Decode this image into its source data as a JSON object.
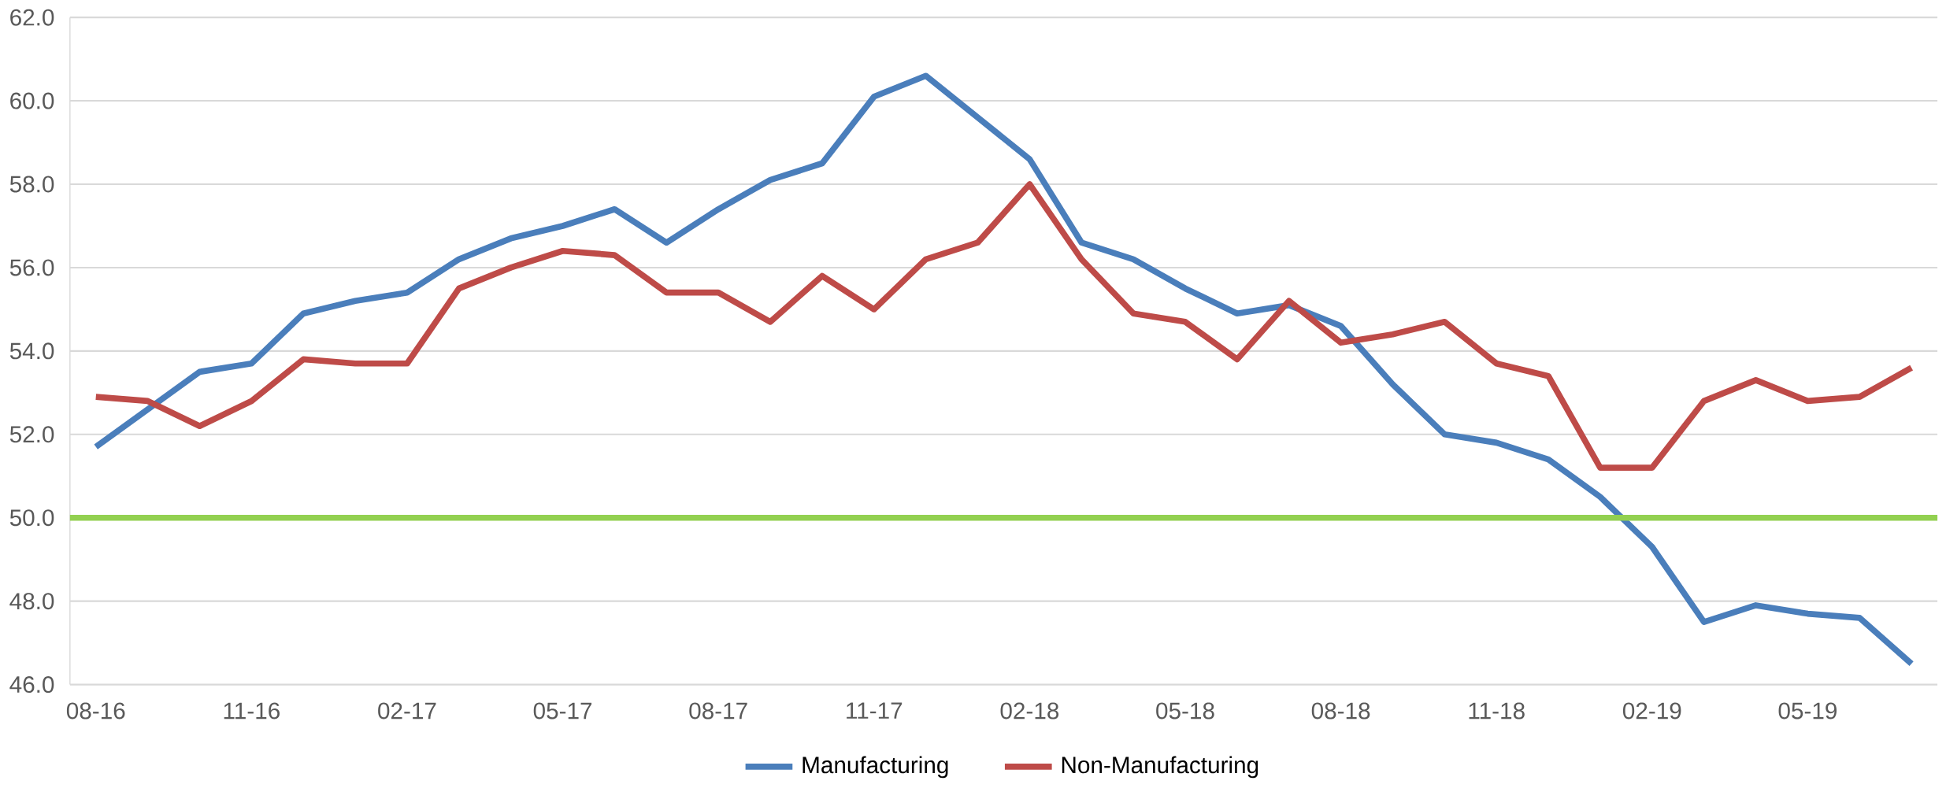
{
  "chart_data": {
    "type": "line",
    "categories": [
      "08-16",
      null,
      null,
      "11-16",
      null,
      null,
      "02-17",
      null,
      null,
      "05-17",
      null,
      null,
      "08-17",
      null,
      null,
      "11-17",
      null,
      null,
      "02-18",
      null,
      null,
      "05-18",
      null,
      null,
      "08-18",
      null,
      null,
      "11-18",
      null,
      null,
      "02-19",
      null,
      null,
      "05-19",
      null,
      null
    ],
    "series": [
      {
        "name": "Manufacturing",
        "color": "#4a7ebb",
        "values": [
          51.7,
          52.6,
          53.5,
          53.7,
          54.9,
          55.2,
          55.4,
          56.2,
          56.7,
          57.0,
          57.4,
          56.6,
          57.4,
          58.1,
          58.5,
          60.1,
          60.6,
          59.6,
          58.6,
          56.6,
          56.2,
          55.5,
          54.9,
          55.1,
          54.6,
          53.2,
          52.0,
          51.8,
          51.4,
          50.5,
          49.3,
          47.5,
          47.9,
          47.7,
          47.6,
          46.5
        ]
      },
      {
        "name": "Non-Manufacturing",
        "color": "#be4b48",
        "values": [
          52.9,
          52.8,
          52.2,
          52.8,
          53.8,
          53.7,
          53.7,
          55.5,
          56.0,
          56.4,
          56.3,
          55.4,
          55.4,
          54.7,
          55.8,
          55.0,
          56.2,
          56.6,
          58.0,
          56.2,
          54.9,
          54.7,
          53.8,
          55.2,
          54.2,
          54.4,
          54.7,
          53.7,
          53.4,
          51.2,
          51.2,
          52.8,
          53.3,
          52.8,
          52.9,
          53.6
        ]
      }
    ],
    "ylim": [
      46,
      62
    ],
    "yticks": [
      {
        "value": 46,
        "label": "46.0"
      },
      {
        "value": 48,
        "label": "48.0"
      },
      {
        "value": 50,
        "label": "50.0"
      },
      {
        "value": 52,
        "label": "52.0"
      },
      {
        "value": 54,
        "label": "54.0"
      },
      {
        "value": 56,
        "label": "56.0"
      },
      {
        "value": 58,
        "label": "58.0"
      },
      {
        "value": 60,
        "label": "60.0"
      },
      {
        "value": 62,
        "label": "62.0"
      }
    ],
    "ref_lines": [
      {
        "axis": "y",
        "value": 50,
        "color": "#92d050"
      }
    ],
    "grid": "y",
    "legend": "bottom",
    "marker": "none",
    "line_style": "solid"
  }
}
